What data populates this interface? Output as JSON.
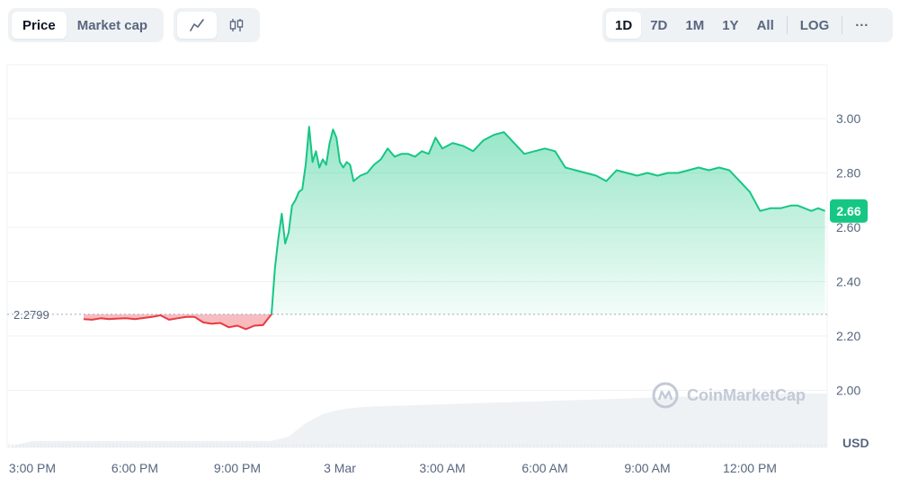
{
  "toolbar": {
    "type_tabs": [
      {
        "label": "Price",
        "active": true
      },
      {
        "label": "Market cap",
        "active": false
      }
    ],
    "mode_icons": [
      {
        "icon": "line-chart-icon",
        "active": true
      },
      {
        "icon": "candlestick-icon",
        "active": false
      }
    ],
    "ranges": [
      {
        "label": "1D",
        "active": true
      },
      {
        "label": "7D",
        "active": false
      },
      {
        "label": "1M",
        "active": false
      },
      {
        "label": "1Y",
        "active": false
      },
      {
        "label": "All",
        "active": false
      }
    ],
    "log_label": "LOG",
    "more_label": "···"
  },
  "watermark": "CoinMarketCap",
  "colors": {
    "up": "#16c784",
    "down": "#ea3943",
    "grid": "#eff2f5",
    "text": "#58667e"
  },
  "chart_data": {
    "type": "area",
    "currency_label": "USD",
    "base_price_label": "2.2799",
    "base_price": 2.2799,
    "current_price_label": "2.66",
    "current_price": 2.66,
    "y_ticks": [
      "3.00",
      "2.80",
      "2.60",
      "2.40",
      "2.20",
      "2.00"
    ],
    "x_ticks": [
      {
        "label": "3:00 PM",
        "t": 0
      },
      {
        "label": "6:00 PM",
        "t": 3
      },
      {
        "label": "9:00 PM",
        "t": 6
      },
      {
        "label": "3 Mar",
        "t": 9
      },
      {
        "label": "3:00 AM",
        "t": 12
      },
      {
        "label": "6:00 AM",
        "t": 15
      },
      {
        "label": "9:00 AM",
        "t": 18
      },
      {
        "label": "12:00 PM",
        "t": 21
      }
    ],
    "series": [
      {
        "x": [
          1.5,
          1.75,
          2.0,
          2.25,
          2.5,
          2.75,
          3.0,
          3.25,
          3.5,
          3.75,
          4.0,
          4.25,
          4.5,
          4.75,
          5.0,
          5.25,
          5.5,
          5.75,
          6.0,
          6.25,
          6.5,
          6.75,
          7.0,
          7.1,
          7.2,
          7.3,
          7.4,
          7.5,
          7.6,
          7.7,
          7.8,
          7.9,
          8.0,
          8.1,
          8.2,
          8.3,
          8.4,
          8.5,
          8.6,
          8.7,
          8.8,
          8.9,
          9.0,
          9.1,
          9.2,
          9.3,
          9.4,
          9.6,
          9.8,
          10.0,
          10.2,
          10.4,
          10.6,
          10.8,
          11.0,
          11.2,
          11.4,
          11.6,
          11.8,
          12.0,
          12.3,
          12.6,
          12.9,
          13.2,
          13.5,
          13.8,
          14.1,
          14.4,
          14.7,
          15.0,
          15.3,
          15.6,
          15.9,
          16.2,
          16.5,
          16.8,
          17.1,
          17.4,
          17.7,
          18.0,
          18.3,
          18.6,
          18.9,
          19.2,
          19.5,
          19.8,
          20.1,
          20.4,
          20.7,
          21.0,
          21.3,
          21.6,
          21.9,
          22.2,
          22.4,
          22.6,
          22.8,
          23.0,
          23.2
        ],
        "y": [
          2.262,
          2.26,
          2.265,
          2.262,
          2.264,
          2.265,
          2.262,
          2.266,
          2.27,
          2.276,
          2.26,
          2.265,
          2.27,
          2.27,
          2.25,
          2.245,
          2.248,
          2.232,
          2.238,
          2.225,
          2.238,
          2.24,
          2.28,
          2.45,
          2.56,
          2.65,
          2.54,
          2.58,
          2.68,
          2.7,
          2.73,
          2.74,
          2.83,
          2.97,
          2.84,
          2.88,
          2.82,
          2.85,
          2.83,
          2.91,
          2.96,
          2.93,
          2.84,
          2.82,
          2.84,
          2.83,
          2.77,
          2.79,
          2.8,
          2.83,
          2.85,
          2.89,
          2.86,
          2.87,
          2.87,
          2.86,
          2.88,
          2.87,
          2.93,
          2.89,
          2.91,
          2.9,
          2.88,
          2.92,
          2.94,
          2.95,
          2.91,
          2.87,
          2.88,
          2.89,
          2.88,
          2.82,
          2.81,
          2.8,
          2.79,
          2.77,
          2.81,
          2.8,
          2.79,
          2.8,
          2.79,
          2.8,
          2.8,
          2.81,
          2.82,
          2.81,
          2.82,
          2.81,
          2.77,
          2.73,
          2.66,
          2.67,
          2.67,
          2.68,
          2.68,
          2.67,
          2.66,
          2.67,
          2.66
        ]
      }
    ],
    "volume_profile": {
      "x": [
        0,
        1,
        2,
        3,
        4,
        5,
        6,
        7,
        7.5,
        8,
        8.5,
        9,
        9.5,
        10,
        11,
        12,
        13,
        14,
        15,
        16,
        17,
        18,
        19,
        20,
        21,
        22,
        23
      ],
      "h": [
        0.12,
        0.12,
        0.12,
        0.12,
        0.12,
        0.12,
        0.12,
        0.12,
        0.2,
        0.45,
        0.62,
        0.7,
        0.74,
        0.76,
        0.78,
        0.8,
        0.82,
        0.84,
        0.86,
        0.88,
        0.9,
        0.92,
        0.94,
        0.96,
        0.98,
        1.0,
        1.0
      ]
    }
  }
}
